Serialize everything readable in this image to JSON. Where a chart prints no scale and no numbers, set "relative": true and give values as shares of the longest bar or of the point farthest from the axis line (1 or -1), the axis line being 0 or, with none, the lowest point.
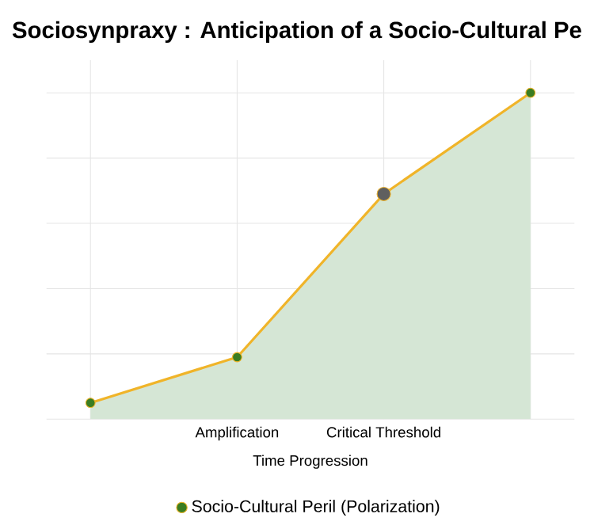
{
  "chart_data": {
    "type": "area",
    "title": "Sociosynpraxy : Anticipation of a Socio-Cultural Pe",
    "xlabel": "Time Progression",
    "categories": [
      null,
      "Amplification",
      "Critical Threshold",
      null
    ],
    "series": [
      {
        "name": "Socio-Cultural Peril (Polarization)",
        "color": "#f0b429",
        "colors": [
          "#3a7d22",
          "#3a7d22",
          "#5f5f5f",
          "#3a7d22"
        ],
        "values": [
          0.05,
          0.19,
          0.69,
          1
        ]
      }
    ],
    "relative": true,
    "grid": true,
    "legend": "bottom",
    "marker": "circle"
  }
}
